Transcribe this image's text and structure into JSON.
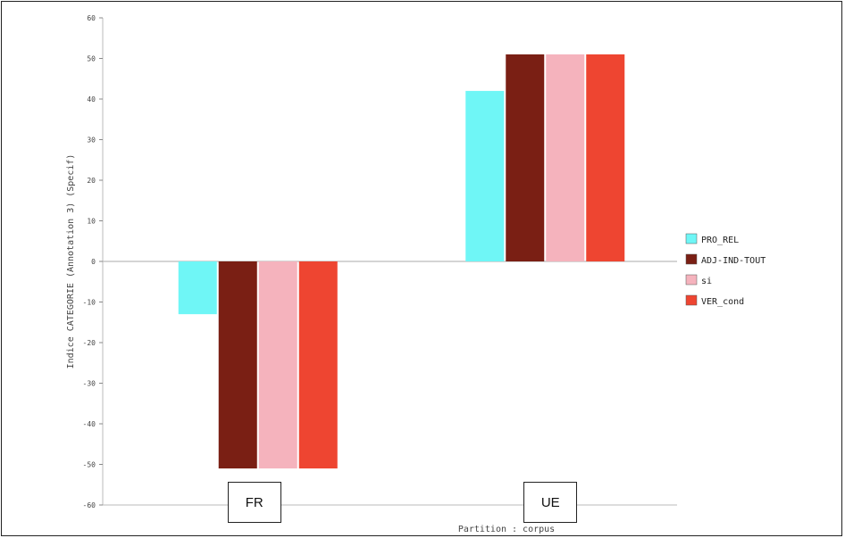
{
  "chart_data": {
    "type": "bar",
    "categories": [
      "FR",
      "UE"
    ],
    "series": [
      {
        "name": "PRO_REL",
        "values": [
          -13,
          42
        ],
        "color": "#6ff6f6"
      },
      {
        "name": "ADJ-IND-TOUT",
        "values": [
          -51,
          51
        ],
        "color": "#7a1f14"
      },
      {
        "name": "si",
        "values": [
          -51,
          51
        ],
        "color": "#f5b3bd"
      },
      {
        "name": "VER_cond",
        "values": [
          -51,
          51
        ],
        "color": "#ee4531"
      }
    ],
    "ylabel": "Indice CATEGORIE (Annotation 3) (Specif)",
    "xlabel": "Partition : corpus",
    "ylim": [
      -60,
      60
    ],
    "yticks": [
      -60,
      -50,
      -40,
      -30,
      -20,
      -10,
      0,
      10,
      20,
      30,
      40,
      50,
      60
    ],
    "legend_position": "right"
  }
}
